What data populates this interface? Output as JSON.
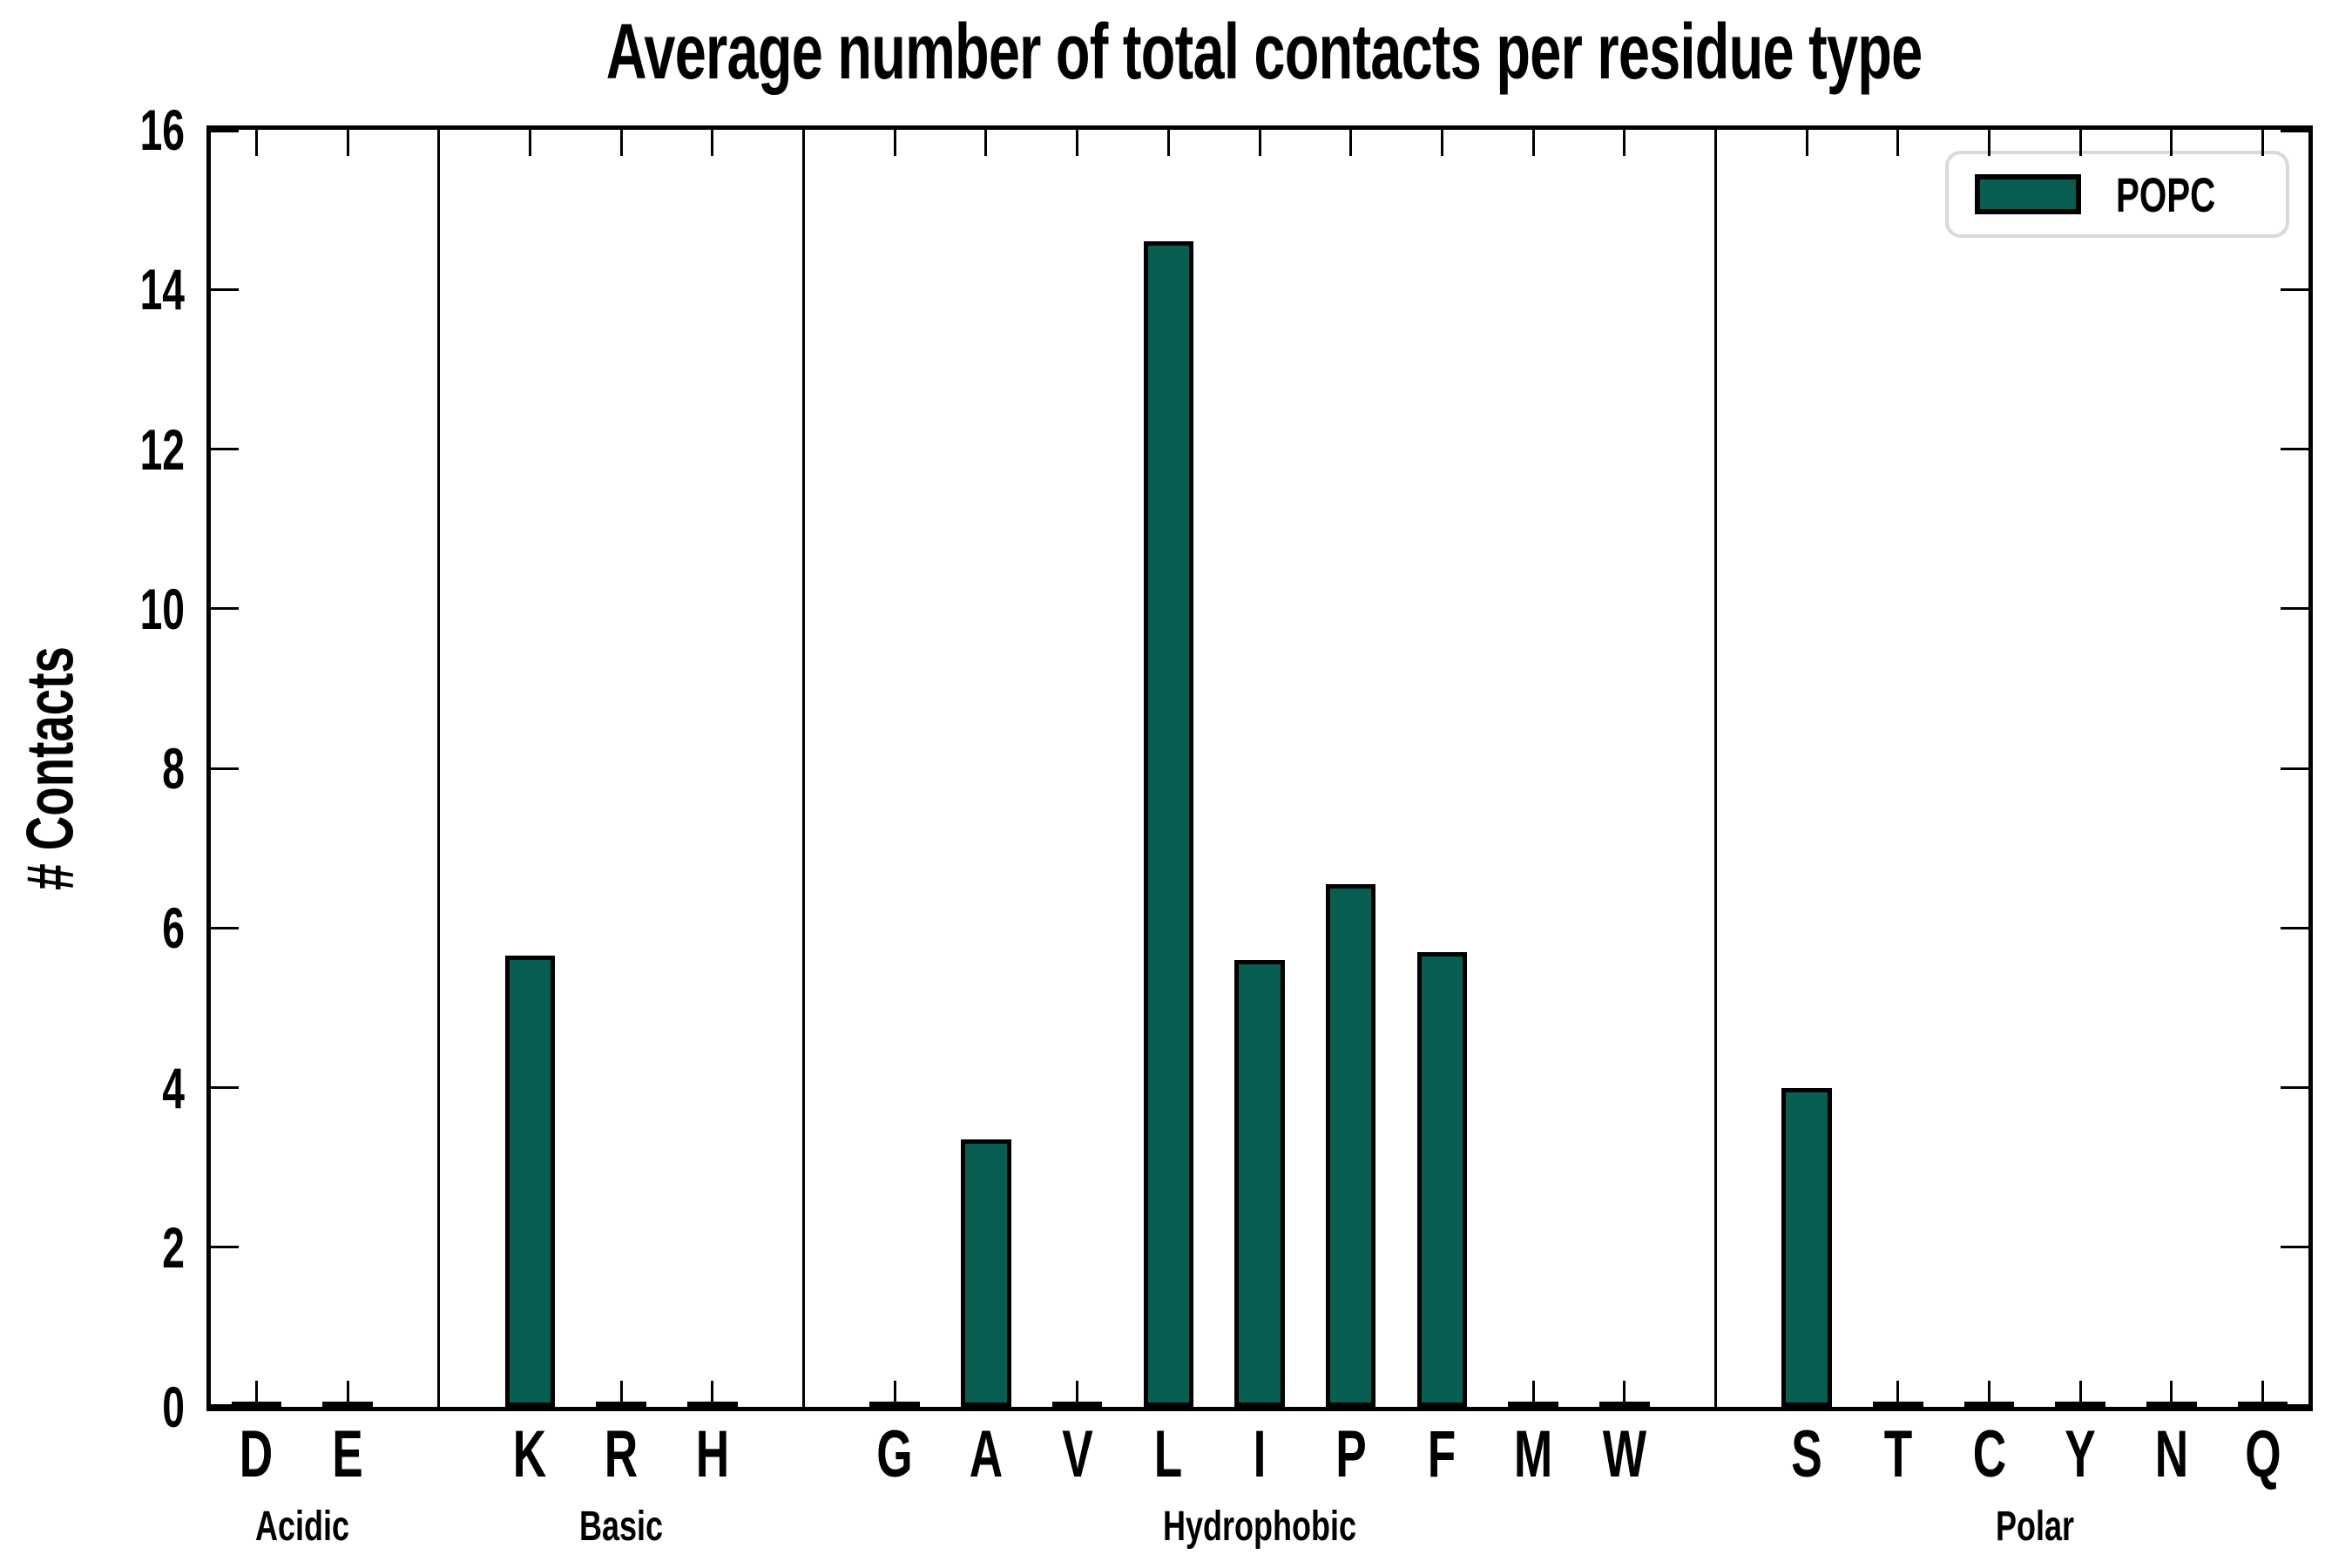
{
  "chart_data": {
    "type": "bar",
    "title": "Average number of total contacts per residue type",
    "ylabel": "# Contacts",
    "ylim": [
      0,
      16
    ],
    "yticks": [
      0,
      2,
      4,
      6,
      8,
      10,
      12,
      14,
      16
    ],
    "grid": false,
    "legend": {
      "label": "POPC",
      "position": "upper right"
    },
    "bar_color": "#085E50",
    "bar_edge_color": "#000000",
    "legend_border_color": "#d9d9d9",
    "groups": [
      {
        "name": "Acidic",
        "categories": [
          "D",
          "E"
        ],
        "values": [
          0.03,
          0.03
        ]
      },
      {
        "name": "Basic",
        "categories": [
          "K",
          "R",
          "H"
        ],
        "values": [
          5.65,
          0.03,
          0.03
        ]
      },
      {
        "name": "Hydrophobic",
        "categories": [
          "G",
          "A",
          "V",
          "L",
          "I",
          "P",
          "F",
          "M",
          "W"
        ],
        "values": [
          0.03,
          3.35,
          0.03,
          14.6,
          5.6,
          6.55,
          5.7,
          0.03,
          0.03
        ]
      },
      {
        "name": "Polar",
        "categories": [
          "S",
          "T",
          "C",
          "Y",
          "N",
          "Q"
        ],
        "values": [
          4.0,
          0.03,
          0.03,
          0.03,
          0.03,
          0.03
        ]
      }
    ]
  }
}
